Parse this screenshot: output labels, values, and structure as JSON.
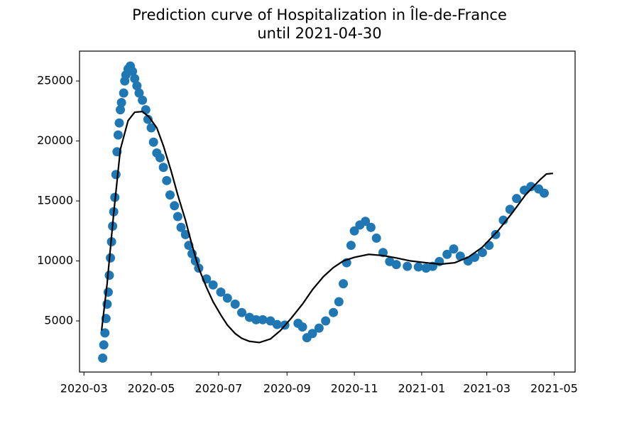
{
  "chart_data": {
    "type": "scatter",
    "title": "Prediction curve of Hospitalization in Île-de-France\nuntil 2021-04-30",
    "xlim": [
      "2020-02-26",
      "2021-05-20"
    ],
    "ylim": [
      740,
      27490
    ],
    "xticks": [
      {
        "value": "2020-03-01",
        "label": "2020-03"
      },
      {
        "value": "2020-05-01",
        "label": "2020-05"
      },
      {
        "value": "2020-07-01",
        "label": "2020-07"
      },
      {
        "value": "2020-09-01",
        "label": "2020-09"
      },
      {
        "value": "2020-11-01",
        "label": "2020-11"
      },
      {
        "value": "2021-01-01",
        "label": "2021-01"
      },
      {
        "value": "2021-03-01",
        "label": "2021-03"
      },
      {
        "value": "2021-05-01",
        "label": "2021-05"
      }
    ],
    "yticks": [
      5000,
      10000,
      15000,
      20000,
      25000
    ],
    "series": [
      {
        "type": "scatter",
        "color": "#1f77b4",
        "x": [
          "2020-03-18",
          "2020-03-19",
          "2020-03-20",
          "2020-03-21",
          "2020-03-22",
          "2020-03-23",
          "2020-03-24",
          "2020-03-25",
          "2020-03-26",
          "2020-03-27",
          "2020-03-28",
          "2020-03-29",
          "2020-03-30",
          "2020-03-31",
          "2020-04-01",
          "2020-04-02",
          "2020-04-03",
          "2020-04-04",
          "2020-04-06",
          "2020-04-07",
          "2020-04-08",
          "2020-04-10",
          "2020-04-12",
          "2020-04-14",
          "2020-04-16",
          "2020-04-18",
          "2020-04-20",
          "2020-04-23",
          "2020-04-26",
          "2020-04-28",
          "2020-05-01",
          "2020-05-03",
          "2020-05-06",
          "2020-05-09",
          "2020-05-12",
          "2020-05-15",
          "2020-05-18",
          "2020-05-22",
          "2020-05-25",
          "2020-05-28",
          "2020-06-01",
          "2020-06-04",
          "2020-06-07",
          "2020-06-10",
          "2020-06-13",
          "2020-06-20",
          "2020-06-26",
          "2020-07-03",
          "2020-07-09",
          "2020-07-16",
          "2020-07-22",
          "2020-07-29",
          "2020-08-04",
          "2020-08-10",
          "2020-08-17",
          "2020-08-23",
          "2020-08-30",
          "2020-09-11",
          "2020-09-15",
          "2020-09-19",
          "2020-09-24",
          "2020-09-30",
          "2020-10-06",
          "2020-10-13",
          "2020-10-18",
          "2020-10-22",
          "2020-10-25",
          "2020-10-29",
          "2020-11-01",
          "2020-11-06",
          "2020-11-11",
          "2020-11-16",
          "2020-11-21",
          "2020-11-27",
          "2020-12-03",
          "2020-12-09",
          "2020-12-19",
          "2020-12-29",
          "2021-01-05",
          "2021-01-11",
          "2021-01-17",
          "2021-01-24",
          "2021-01-30",
          "2021-02-05",
          "2021-02-12",
          "2021-02-18",
          "2021-02-25",
          "2021-03-03",
          "2021-03-09",
          "2021-03-16",
          "2021-03-22",
          "2021-03-28",
          "2021-04-04",
          "2021-04-10",
          "2021-04-17",
          "2021-04-22"
        ],
        "values": [
          1900,
          3000,
          4000,
          5200,
          6400,
          7400,
          8800,
          10250,
          11600,
          12900,
          14100,
          15300,
          17200,
          19100,
          20500,
          21500,
          22600,
          23200,
          24000,
          25000,
          25500,
          26000,
          26250,
          25800,
          25200,
          24600,
          24000,
          23400,
          22600,
          21800,
          21100,
          19900,
          19000,
          18600,
          17800,
          16700,
          15500,
          14600,
          13700,
          12800,
          12200,
          11300,
          10600,
          10000,
          9400,
          8500,
          8000,
          7400,
          6900,
          6400,
          5700,
          5300,
          5100,
          5100,
          5000,
          4700,
          4650,
          4800,
          4500,
          3600,
          3950,
          4400,
          5000,
          5700,
          6600,
          8100,
          9850,
          11300,
          12500,
          13000,
          13300,
          12800,
          11900,
          10700,
          9950,
          9700,
          9550,
          9500,
          9400,
          9550,
          9950,
          10550,
          11000,
          10400,
          10000,
          10300,
          10700,
          11300,
          12200,
          13400,
          14300,
          15200,
          15900,
          16200,
          16000,
          15650
        ]
      },
      {
        "type": "line",
        "color": "#000000",
        "x": [
          "2020-03-17",
          "2020-03-22",
          "2020-03-28",
          "2020-04-03",
          "2020-04-10",
          "2020-04-16",
          "2020-04-23",
          "2020-04-29",
          "2020-05-06",
          "2020-05-12",
          "2020-05-19",
          "2020-05-25",
          "2020-06-01",
          "2020-06-07",
          "2020-06-13",
          "2020-06-20",
          "2020-06-26",
          "2020-07-03",
          "2020-07-09",
          "2020-07-16",
          "2020-07-22",
          "2020-07-29",
          "2020-08-07",
          "2020-08-17",
          "2020-08-26",
          "2020-09-05",
          "2020-09-15",
          "2020-09-24",
          "2020-10-04",
          "2020-10-13",
          "2020-10-22",
          "2020-11-01",
          "2020-11-14",
          "2020-11-27",
          "2020-12-09",
          "2020-12-22",
          "2021-01-05",
          "2021-01-18",
          "2021-01-31",
          "2021-02-12",
          "2021-02-25",
          "2021-03-11",
          "2021-03-24",
          "2021-04-05",
          "2021-04-18",
          "2021-04-24",
          "2021-04-30"
        ],
        "values": [
          4200,
          8100,
          14000,
          19300,
          21700,
          22400,
          22450,
          22000,
          21100,
          19600,
          17500,
          15500,
          13400,
          11300,
          9400,
          7800,
          6600,
          5500,
          4650,
          3950,
          3550,
          3300,
          3200,
          3500,
          4200,
          5250,
          6400,
          7600,
          8700,
          9450,
          10000,
          10300,
          10550,
          10450,
          10250,
          10000,
          9850,
          9730,
          9850,
          10300,
          11150,
          12500,
          14000,
          15500,
          16750,
          17250,
          17300
        ]
      }
    ]
  }
}
